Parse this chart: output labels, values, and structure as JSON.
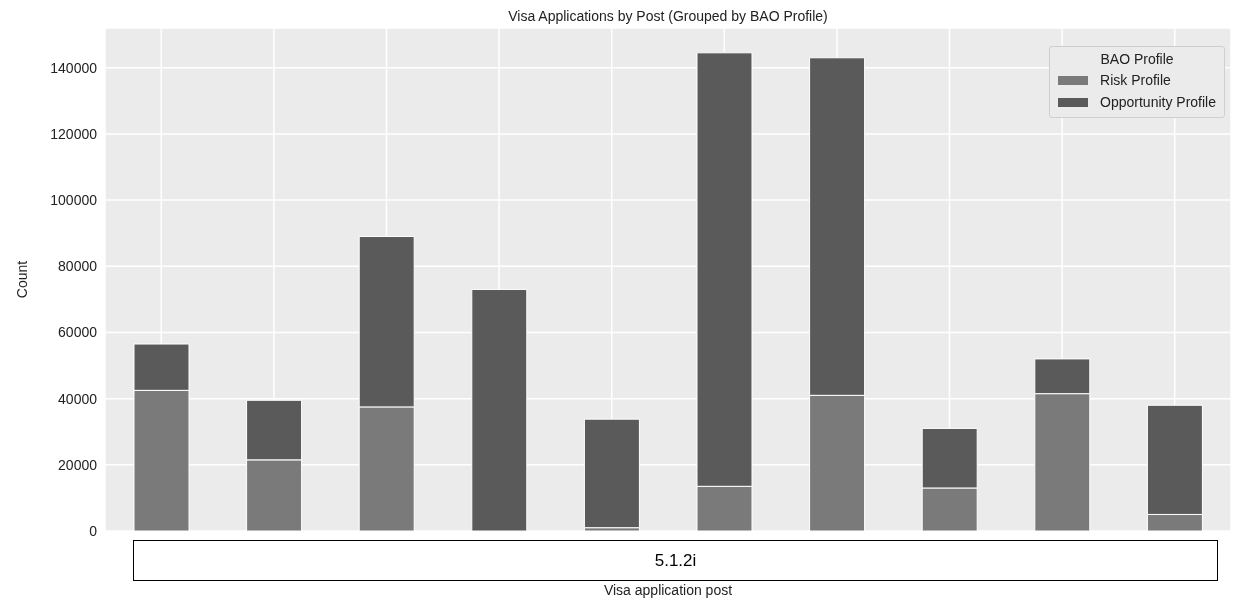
{
  "chart_data": {
    "type": "bar",
    "title": "Visa Applications by Post (Grouped by BAO Profile)",
    "xlabel": "Visa application post",
    "ylabel": "Count",
    "legend_title": "BAO Profile",
    "annotations": [
      "5.1.2i"
    ],
    "categories": [
      null,
      null,
      null,
      null,
      null,
      null,
      null,
      null,
      null,
      null
    ],
    "series": [
      {
        "name": "Risk Profile",
        "color": "#7a7a7a",
        "values": [
          42500,
          21500,
          37500,
          0,
          1000,
          13500,
          41000,
          13000,
          41500,
          5000
        ]
      },
      {
        "name": "Opportunity Profile",
        "color": "#5a5a5a",
        "values": [
          14000,
          18000,
          51500,
          73000,
          32800,
          131000,
          102000,
          18000,
          10500,
          33000
        ]
      }
    ],
    "stacked": true,
    "ylim": [
      0,
      152000
    ],
    "yticks": [
      0,
      20000,
      40000,
      60000,
      80000,
      100000,
      120000,
      140000
    ],
    "grid": true,
    "legend": "top right"
  }
}
